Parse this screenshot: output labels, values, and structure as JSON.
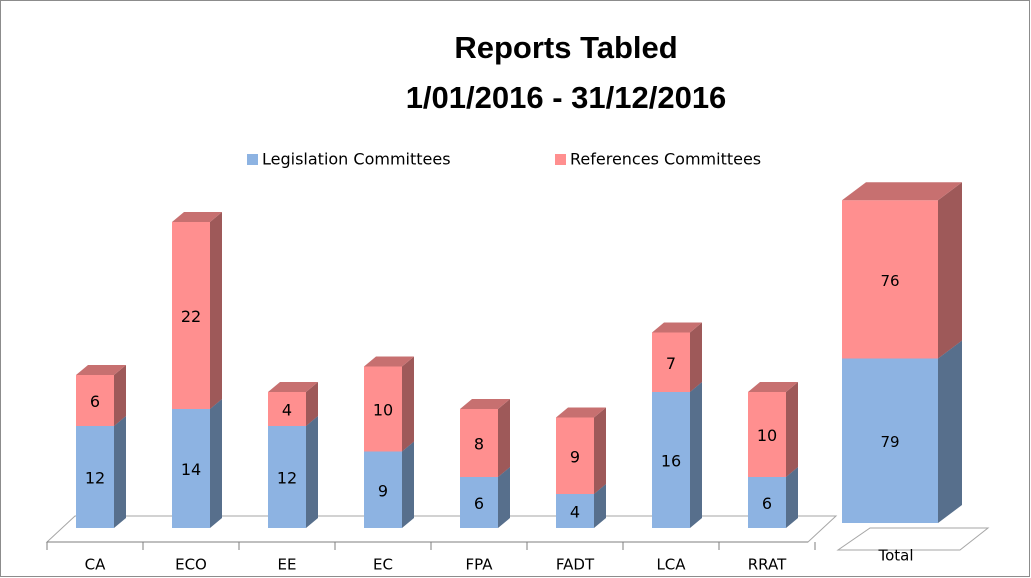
{
  "chart_data": [
    {
      "type": "bar",
      "stacked": true,
      "title": "Reports Tabled",
      "subtitle": "1/01/2016 - 31/12/2016",
      "categories": [
        "CA",
        "ECO",
        "EE",
        "EC",
        "FPA",
        "FADT",
        "LCA",
        "RRAT"
      ],
      "series": [
        {
          "name": "Legislation Committees",
          "color": "#8db3e2",
          "values": [
            12,
            14,
            12,
            9,
            6,
            4,
            16,
            6
          ]
        },
        {
          "name": "References Committees",
          "color": "#ff8f8f",
          "values": [
            6,
            22,
            4,
            10,
            8,
            9,
            7,
            10
          ]
        }
      ],
      "ylim": [
        0,
        40
      ]
    },
    {
      "type": "bar",
      "stacked": true,
      "categories": [
        "Total"
      ],
      "series": [
        {
          "color": "#8db3e2",
          "values": [
            79
          ]
        },
        {
          "color": "#ff8f8f",
          "values": [
            76
          ]
        }
      ],
      "ylim": [
        0,
        170
      ]
    }
  ]
}
